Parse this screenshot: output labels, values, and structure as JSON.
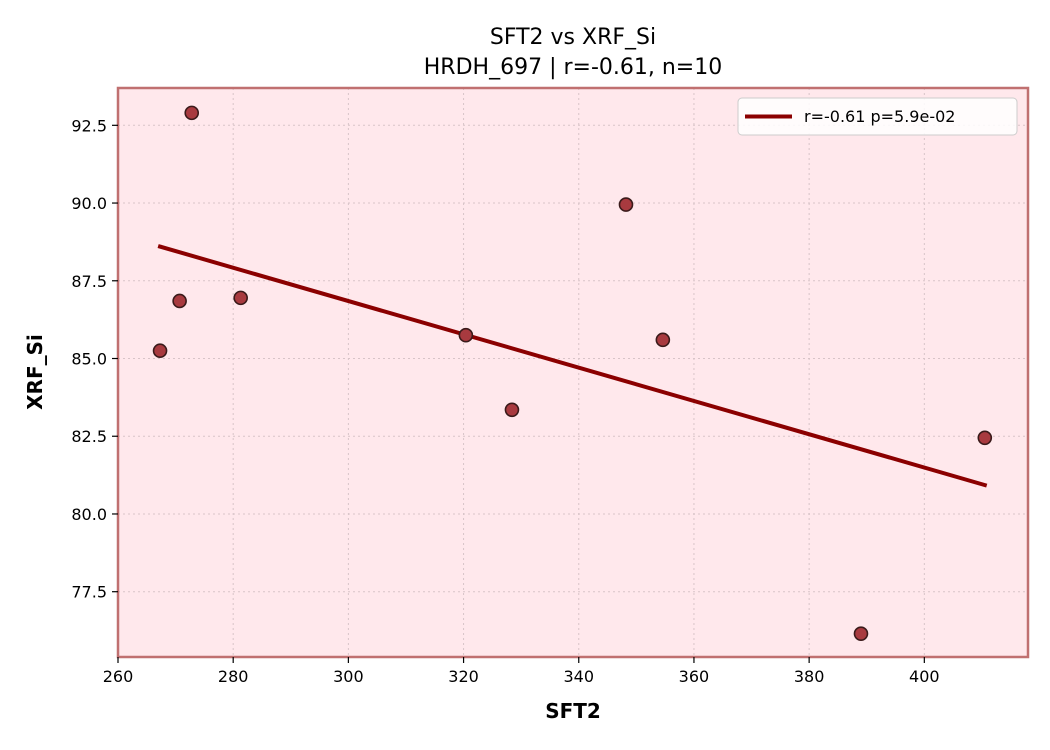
{
  "chart_data": {
    "type": "scatter",
    "title": "SFT2 vs XRF_Si",
    "subtitle": "HRDH_697 | r=-0.61, n=10",
    "xlabel": "SFT2",
    "ylabel": "XRF_Si",
    "xlim": [
      260,
      418
    ],
    "ylim": [
      75.4,
      93.7
    ],
    "xticks": [
      260,
      280,
      300,
      320,
      340,
      360,
      380,
      400
    ],
    "xtick_labels": [
      "260",
      "280",
      "300",
      "320",
      "340",
      "360",
      "380",
      "400"
    ],
    "yticks": [
      77.5,
      80.0,
      82.5,
      85.0,
      87.5,
      90.0,
      92.5
    ],
    "ytick_labels": [
      "77.5",
      "80.0",
      "82.5",
      "85.0",
      "87.5",
      "90.0",
      "92.5"
    ],
    "grid": true,
    "points": [
      {
        "x": 267.3,
        "y": 85.25
      },
      {
        "x": 270.7,
        "y": 86.85
      },
      {
        "x": 272.8,
        "y": 92.9
      },
      {
        "x": 281.3,
        "y": 86.95
      },
      {
        "x": 320.4,
        "y": 85.75
      },
      {
        "x": 328.4,
        "y": 83.35
      },
      {
        "x": 348.2,
        "y": 89.95
      },
      {
        "x": 354.6,
        "y": 85.6
      },
      {
        "x": 389.0,
        "y": 76.15
      },
      {
        "x": 410.5,
        "y": 82.45
      }
    ],
    "fit_line": {
      "x": [
        267.3,
        410.5
      ],
      "y": [
        88.6,
        80.93
      ]
    },
    "legend": {
      "label": "r=-0.61  p=5.9e-02",
      "position": "top-right"
    },
    "colors": {
      "background": "#ffe8ec",
      "frame": "#c07070",
      "marker_fill": "#a83a3f",
      "marker_edge": "#3a1a1a",
      "fit_line": "#8b0000",
      "grid": "#d8c4c8"
    }
  }
}
